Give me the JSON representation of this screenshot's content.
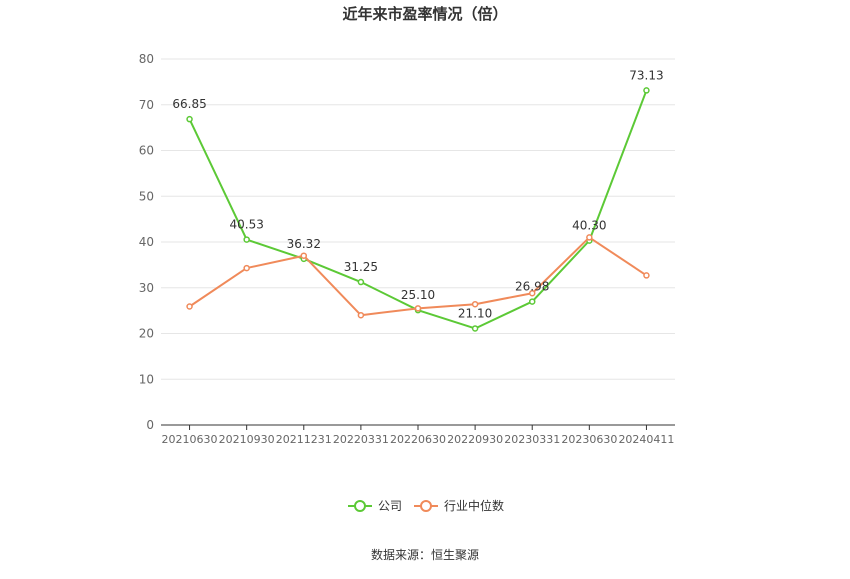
{
  "chart_data": {
    "type": "line",
    "title": "近年来市盈率情况（倍）",
    "categories": [
      "20210630",
      "20210930",
      "20211231",
      "20220331",
      "20220630",
      "20220930",
      "20230331",
      "20230630",
      "20240411"
    ],
    "series": [
      {
        "name": "公司",
        "color": "#5cc936",
        "values": [
          66.85,
          40.53,
          36.32,
          31.25,
          25.1,
          21.1,
          26.98,
          40.3,
          73.13
        ],
        "labels": [
          "66.85",
          "40.53",
          "36.32",
          "31.25",
          "25.10",
          "21.10",
          "26.98",
          "40.30",
          "73.13"
        ]
      },
      {
        "name": "行业中位数",
        "color": "#f08a5a",
        "values": [
          25.9,
          34.3,
          37.0,
          24.0,
          25.5,
          26.4,
          28.8,
          41.0,
          32.7
        ]
      }
    ],
    "yticks": [
      0,
      10,
      20,
      30,
      40,
      50,
      60,
      70,
      80
    ],
    "ylim": [
      0,
      80
    ],
    "grid": true,
    "legend_position": "bottom-center",
    "source": "数据来源：恒生聚源"
  }
}
